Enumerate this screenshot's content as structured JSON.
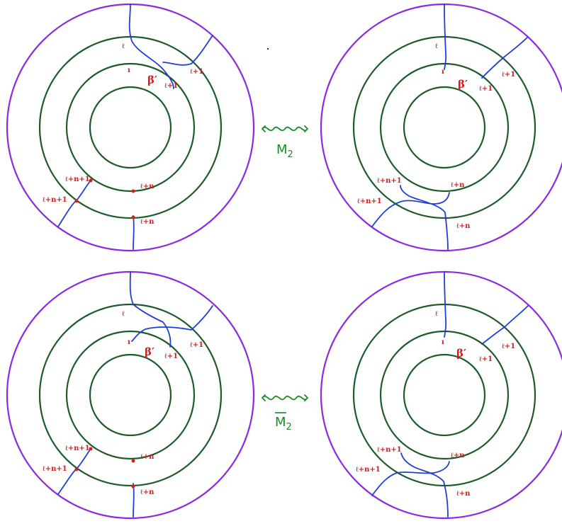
{
  "panels": [
    {
      "labels": {
        "l": "ℓ",
        "l1_outer": "ℓ+1",
        "l1_inner": "ℓ+1",
        "beta": "β′",
        "ln_inner": "ℓ+n",
        "ln_outer": "ℓ+n",
        "ln1_inner": "ℓ+n+1",
        "ln1_outer": "ℓ+n+1"
      }
    },
    {
      "labels": {
        "l": "ℓ",
        "l1_outer": "ℓ+1",
        "l1_inner": "ℓ+1",
        "beta": "β′",
        "ln_inner": "ℓ+n",
        "ln_outer": "ℓ+n",
        "ln1_inner": "ℓ+n+1",
        "ln1_outer": "ℓ+n+1"
      }
    },
    {
      "labels": {
        "l": "ℓ",
        "l1_outer": "ℓ+1",
        "l1_inner": "ℓ+1",
        "beta": "β′",
        "ln_inner": "ℓ+n",
        "ln_outer": "ℓ+n",
        "ln1_inner": "ℓ+n+1",
        "ln1_outer": "ℓ+n+1"
      }
    },
    {
      "labels": {
        "l": "ℓ",
        "l1_outer": "ℓ+1",
        "l1_inner": "ℓ+1",
        "beta": "β′",
        "ln_inner": "ℓ+n",
        "ln_outer": "ℓ+n",
        "ln1_inner": "ℓ+n+1",
        "ln1_outer": "ℓ+n+1"
      }
    }
  ],
  "moves": [
    {
      "arrow": "⟨~~~⟩",
      "label_main": "M",
      "label_sub": "2",
      "overline": false
    },
    {
      "arrow": "⟨~~~⟩",
      "label_main": "M",
      "label_sub": "2",
      "overline": true
    }
  ],
  "colors": {
    "outer_circle": "#8a2be2",
    "inner_circles": "#1e5a2a",
    "curves": "#1f3fd6",
    "labels": "#e01818",
    "move_label": "#1a8a2a"
  }
}
